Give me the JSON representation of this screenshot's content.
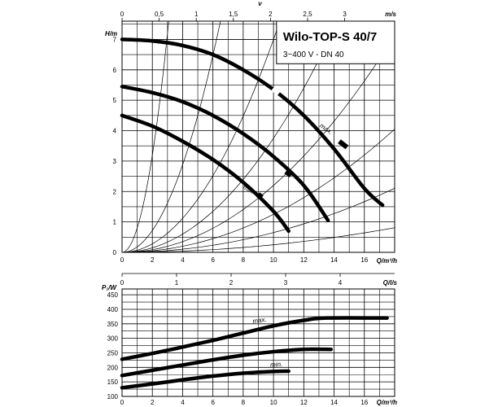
{
  "chart_data": [
    {
      "type": "line",
      "title": "Wilo-TOP-S 40/7",
      "subtitle": "3~400 V - DN 40",
      "ylabel": "H/m",
      "xlabel": "Q/m³/h",
      "x2label": "v",
      "x2unit": "m/s",
      "x3label": "Q/l/s",
      "xlim": [
        0,
        18
      ],
      "ylim": [
        0,
        7.6
      ],
      "x_ticks": [
        0,
        2,
        4,
        6,
        8,
        10,
        12,
        14,
        16
      ],
      "y_ticks": [
        0,
        1,
        2,
        3,
        4,
        5,
        6,
        7
      ],
      "x2_ticks": [
        {
          "label": "0",
          "value": 0
        },
        {
          "label": "0,5",
          "value": 0.5
        },
        {
          "label": "1",
          "value": 1
        },
        {
          "label": "1,5",
          "value": 1.5
        },
        {
          "label": "2",
          "value": 2
        },
        {
          "label": "2,5",
          "value": 2.5
        },
        {
          "label": "3",
          "value": 3
        }
      ],
      "x2_scale_m3h_per_ms": 4.9,
      "x3_ticks": [
        {
          "label": "0",
          "value": 0
        },
        {
          "label": "1",
          "value": 1
        },
        {
          "label": "2",
          "value": 2
        },
        {
          "label": "3",
          "value": 3
        },
        {
          "label": "4",
          "value": 4
        }
      ],
      "grid": true,
      "series": [
        {
          "name": "max.",
          "points": [
            [
              0,
              7.0
            ],
            [
              2,
              6.95
            ],
            [
              4,
              6.8
            ],
            [
              6,
              6.5
            ],
            [
              8,
              6.0
            ],
            [
              10,
              5.35
            ],
            [
              12,
              4.5
            ],
            [
              14,
              3.4
            ],
            [
              16,
              2.1
            ],
            [
              17.2,
              1.55
            ]
          ]
        },
        {
          "name": "",
          "points": [
            [
              0,
              5.45
            ],
            [
              2,
              5.25
            ],
            [
              4,
              4.95
            ],
            [
              6,
              4.5
            ],
            [
              8,
              3.9
            ],
            [
              10,
              3.15
            ],
            [
              12,
              2.2
            ],
            [
              13.6,
              1.05
            ]
          ]
        },
        {
          "name": "min.",
          "points": [
            [
              0,
              4.5
            ],
            [
              2,
              4.15
            ],
            [
              4,
              3.65
            ],
            [
              6,
              3.05
            ],
            [
              8,
              2.3
            ],
            [
              10,
              1.35
            ],
            [
              11,
              0.7
            ]
          ]
        }
      ],
      "system_curve_factors": [
        0.8,
        0.18,
        0.07,
        0.0375,
        0.022,
        0.0125,
        0.0065,
        0.0025
      ]
    },
    {
      "type": "line",
      "ylabel": "P₁/W",
      "xlabel": "Q/m³/h",
      "xlim": [
        0,
        18
      ],
      "ylim": [
        100,
        470
      ],
      "x_ticks": [
        0,
        2,
        4,
        6,
        8,
        10,
        12,
        14,
        16
      ],
      "y_ticks": [
        100,
        150,
        200,
        250,
        300,
        350,
        400,
        450
      ],
      "grid": true,
      "series": [
        {
          "name": "max.",
          "points": [
            [
              0,
              228
            ],
            [
              2,
              248
            ],
            [
              4,
              270
            ],
            [
              6,
              293
            ],
            [
              8,
              318
            ],
            [
              10,
              343
            ],
            [
              12,
              362
            ],
            [
              13.5,
              370
            ],
            [
              17.5,
              370
            ]
          ]
        },
        {
          "name": "",
          "points": [
            [
              0,
              172
            ],
            [
              2,
              190
            ],
            [
              4,
              208
            ],
            [
              6,
              226
            ],
            [
              8,
              242
            ],
            [
              10,
              254
            ],
            [
              12,
              262
            ],
            [
              13.8,
              262
            ]
          ]
        },
        {
          "name": "min.",
          "points": [
            [
              0,
              130
            ],
            [
              2,
              143
            ],
            [
              4,
              157
            ],
            [
              6,
              170
            ],
            [
              8,
              180
            ],
            [
              10,
              186
            ],
            [
              11,
              187
            ]
          ]
        }
      ]
    }
  ]
}
